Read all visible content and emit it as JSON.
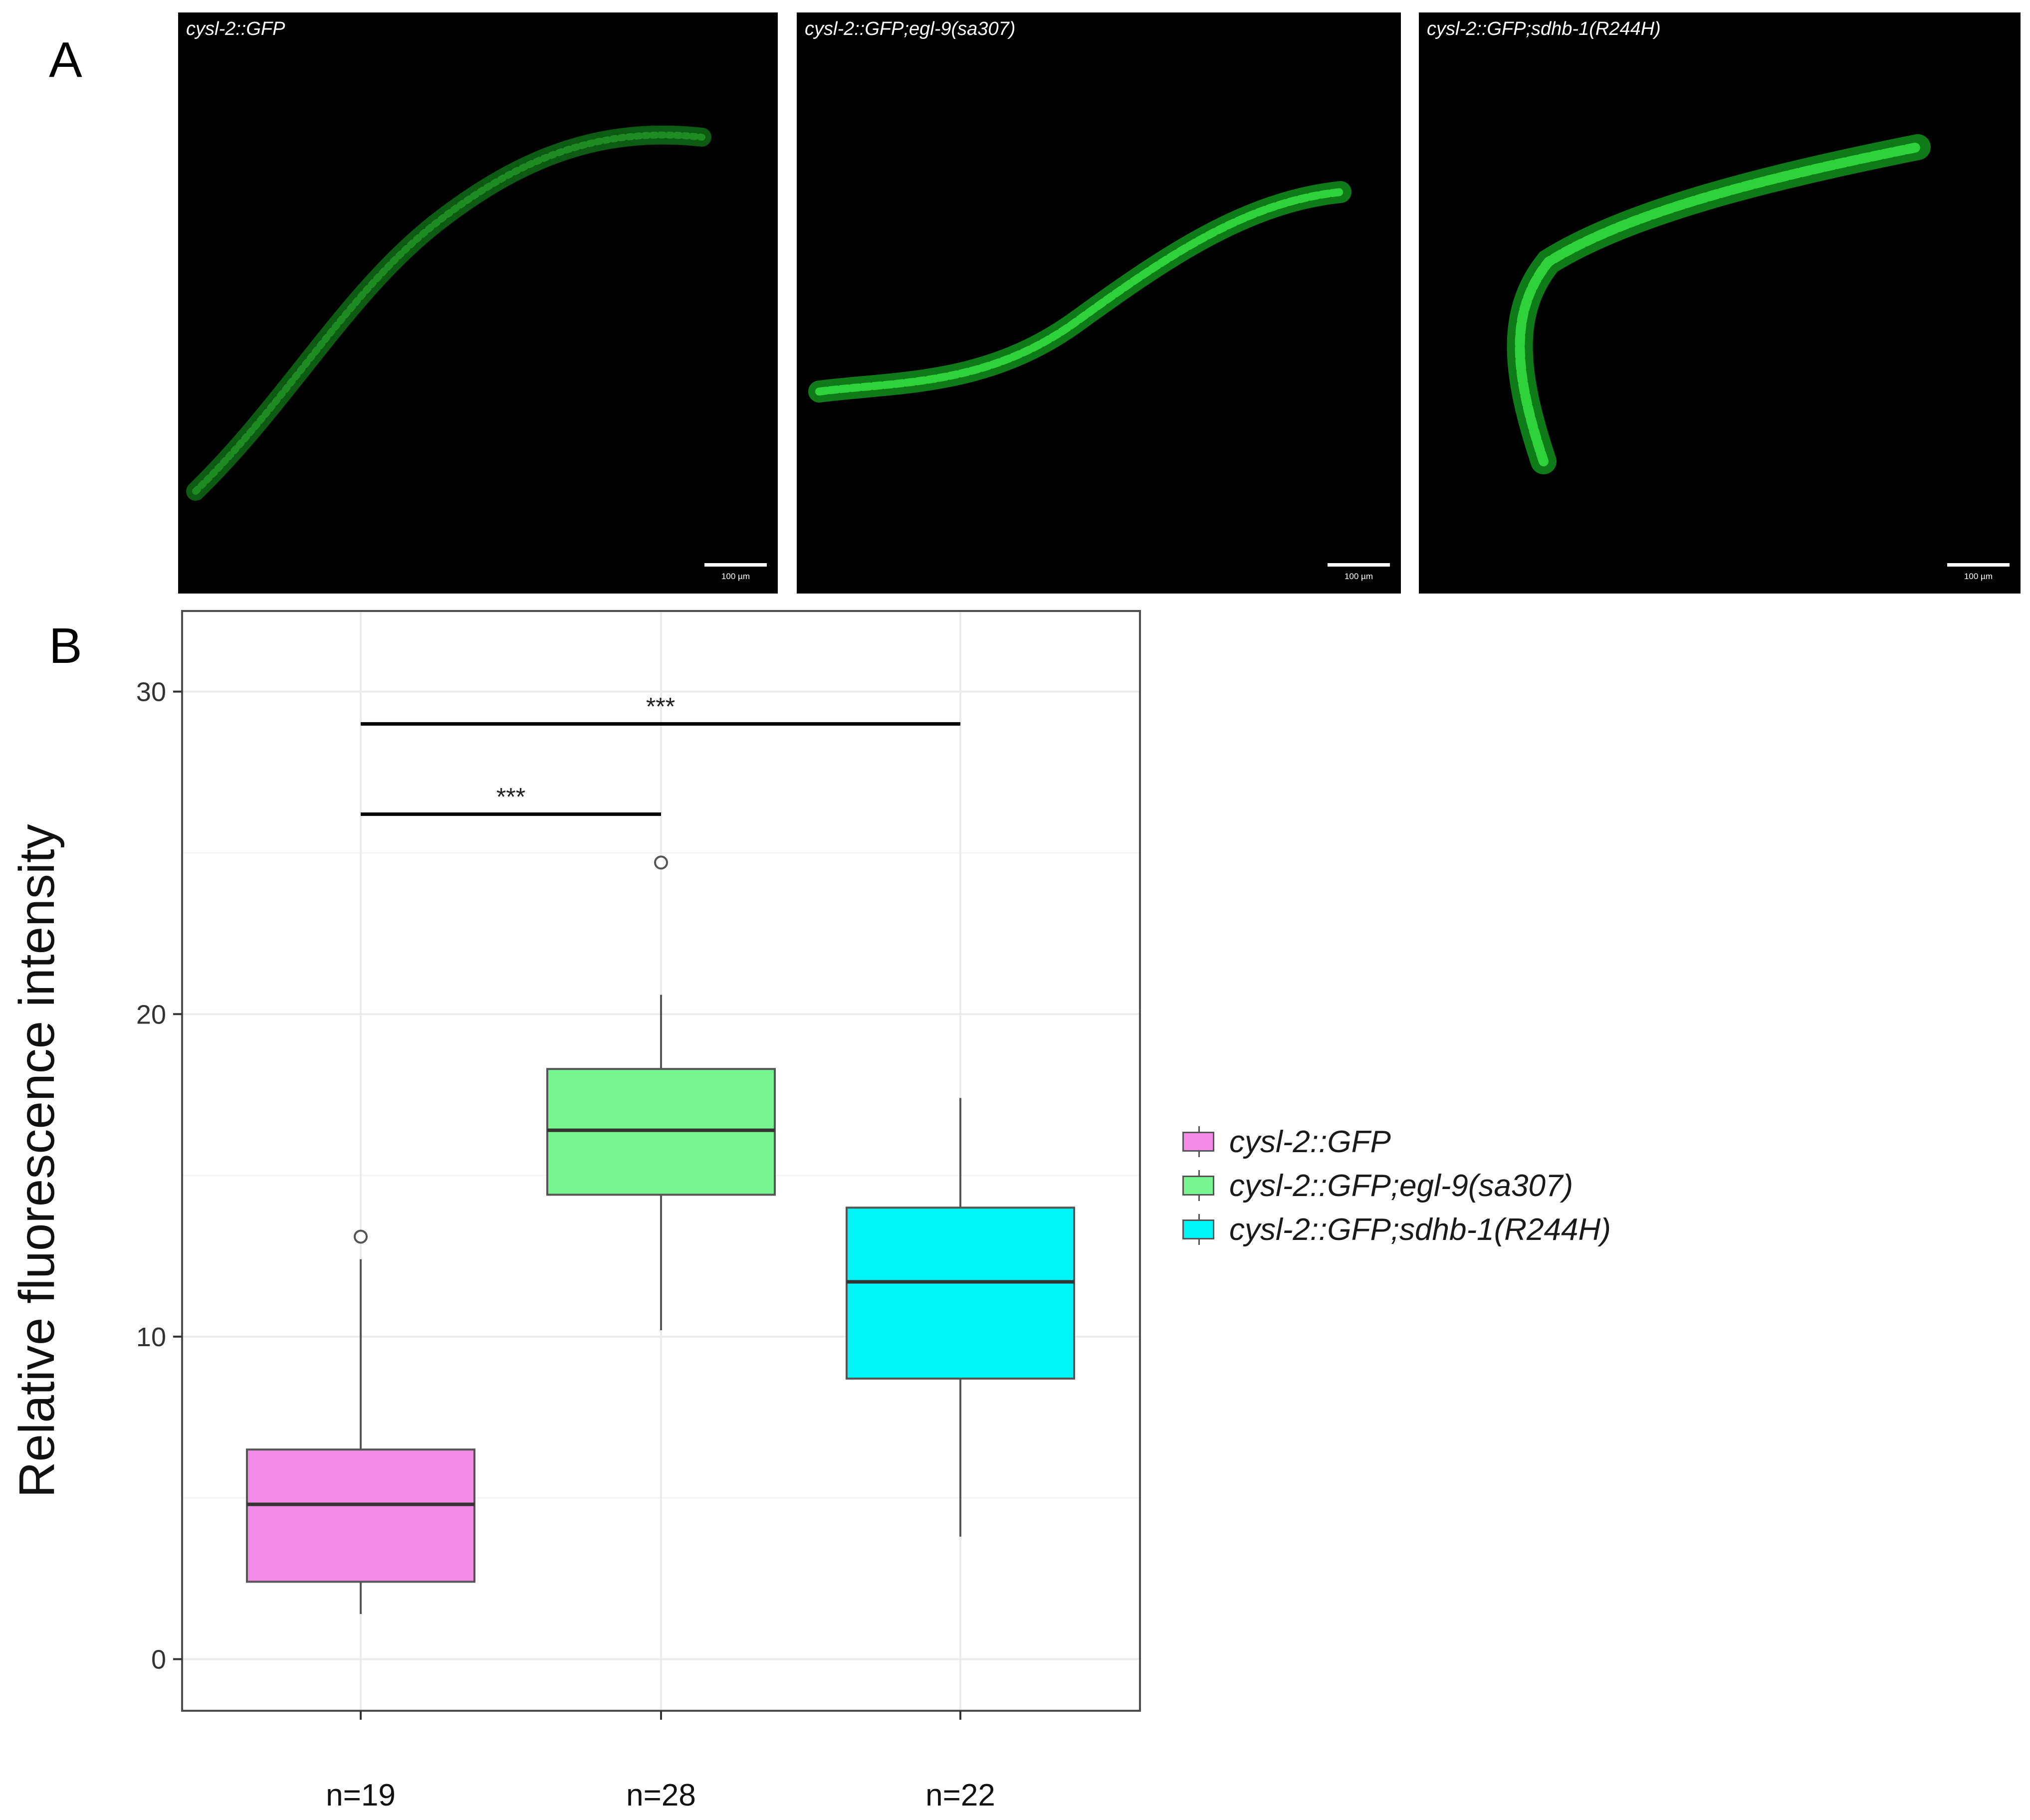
{
  "panels": {
    "a_label": "A",
    "b_label": "B",
    "images": [
      {
        "caption": "cysl-2::GFP",
        "scale_label": "100 µm"
      },
      {
        "caption": "cysl-2::GFP;egl-9(sa307)",
        "scale_label": "100 µm"
      },
      {
        "caption": "cysl-2::GFP;sdhb-1(R244H)",
        "scale_label": "100 µm"
      }
    ]
  },
  "chart_data": {
    "type": "box",
    "title": "",
    "xlabel": "",
    "ylabel": "Relative fluorescence intensity",
    "ylim": [
      -1.6,
      32.5
    ],
    "yticks": [
      0,
      10,
      20,
      30
    ],
    "grid": true,
    "legend_position": "right",
    "categories": [
      "n=19",
      "n=28",
      "n=22"
    ],
    "series": [
      {
        "name": "cysl-2::GFP",
        "color": "#F48BE8",
        "whisker_low": 1.4,
        "q1": 2.4,
        "median": 4.8,
        "q3": 6.5,
        "whisker_high": 12.4,
        "outliers": [
          13.1
        ]
      },
      {
        "name": "cysl-2::GFP;egl-9(sa307)",
        "color": "#77F58E",
        "whisker_low": 10.2,
        "q1": 14.4,
        "median": 16.4,
        "q3": 18.3,
        "whisker_high": 20.6,
        "outliers": [
          24.7
        ]
      },
      {
        "name": "cysl-2::GFP;sdhb-1(R244H)",
        "color": "#00F6F6",
        "whisker_low": 3.8,
        "q1": 8.7,
        "median": 11.7,
        "q3": 14.0,
        "whisker_high": 17.4,
        "outliers": []
      }
    ],
    "significance": [
      {
        "from": 0,
        "to": 1,
        "y": 26.2,
        "label": "***"
      },
      {
        "from": 0,
        "to": 2,
        "y": 29.0,
        "label": "***"
      }
    ]
  }
}
